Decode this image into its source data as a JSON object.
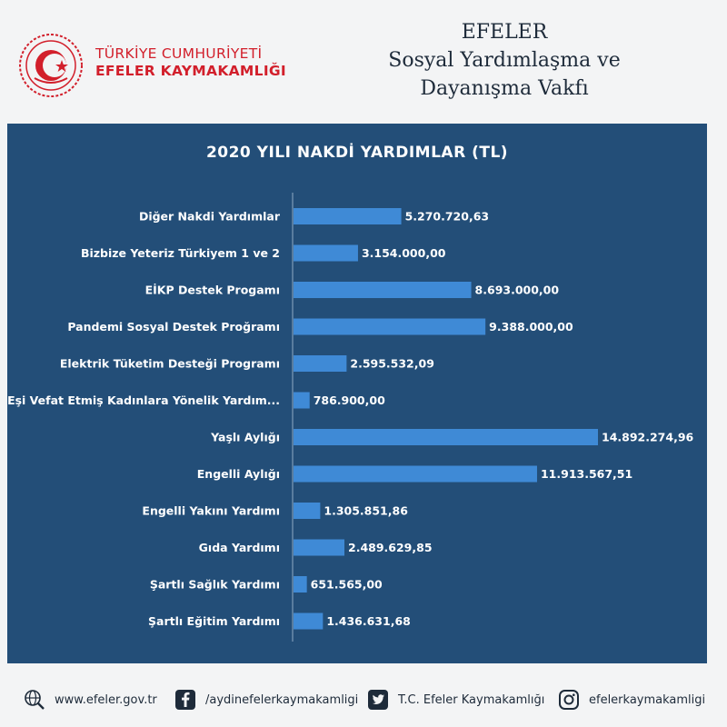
{
  "header": {
    "org_line1": "TÜRKİYE CUMHURİYETİ",
    "org_line2": "EFELER KAYMAKAMLIĞI",
    "foundation_line1": "EFELER",
    "foundation_line2": "Sosyal Yardımlaşma ve",
    "foundation_line3": "Dayanışma Vakfı",
    "logo_icon": "crescent-star-emblem-icon"
  },
  "chart_data": {
    "type": "bar",
    "orientation": "horizontal",
    "title": "2020 YILI NAKDİ YARDIMLAR (TL)",
    "categories": [
      "Diğer Nakdi Yardımlar",
      "Bizbize Yeteriz Türkiyem 1 ve 2",
      "EİKP Destek Progamı",
      "Pandemi Sosyal Destek Proğramı",
      "Elektrik Tüketim Desteği Programı",
      "Eşi Vefat Etmiş Kadınlara Yönelik Yardım...",
      "Yaşlı Aylığı",
      "Engelli Aylığı",
      "Engelli Yakını Yardımı",
      "Gıda Yardımı",
      "Şartlı Sağlık Yardımı",
      "Şartlı Eğitim Yardımı"
    ],
    "values": [
      5270720.63,
      3154000.0,
      8693000.0,
      9388000.0,
      2595532.09,
      786900.0,
      14892274.96,
      11913567.51,
      1305851.86,
      2489629.85,
      651565.0,
      1436631.68
    ],
    "value_labels": [
      "5.270.720,63",
      "3.154.000,00",
      "8.693.000,00",
      "9.388.000,00",
      "2.595.532,09",
      "786.900,00",
      "14.892.274,96",
      "11.913.567,51",
      "1.305.851,86",
      "2.489.629,85",
      "651.565,00",
      "1.436.631,68"
    ],
    "xlim": [
      0,
      14892274.96
    ],
    "grid": false,
    "legend": "none",
    "colors": {
      "panel": "#234e78",
      "bar": "#3f8ad6",
      "text": "#ffffff"
    }
  },
  "footer": {
    "website": "www.efeler.gov.tr",
    "facebook": "/aydinefelerkaymakamligi",
    "twitter": "T.C. Efeler Kaymakamlığı",
    "instagram": "efelerkaymakamligi",
    "icons": [
      "globe-search-icon",
      "facebook-icon",
      "twitter-icon",
      "instagram-icon"
    ]
  }
}
